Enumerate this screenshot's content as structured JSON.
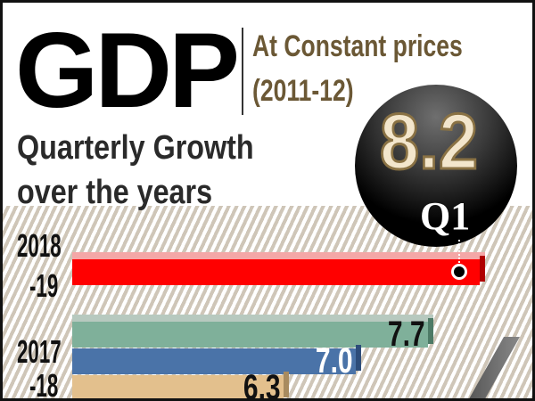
{
  "header": {
    "title": "GDP",
    "subtitle_line1": "At Constant prices",
    "subtitle_line2": "(2011-12)",
    "heading_line1": "Quarterly Growth",
    "heading_line2": "over the years"
  },
  "highlight": {
    "value": "8.2",
    "quarter": "Q1"
  },
  "chart_data": {
    "type": "bar",
    "title": "GDP Quarterly Growth over the years",
    "xlim": [
      4.25,
      8.2
    ],
    "groups": [
      {
        "year_line1": "2018",
        "year_line2": "-19",
        "bars": [
          {
            "quarter": "Q1",
            "value": 8.2,
            "label": "",
            "color": "#ff0000",
            "top": "#f4a7a7",
            "side": "#b00000"
          }
        ]
      },
      {
        "year_line1": "2017",
        "year_line2": "-18",
        "bars": [
          {
            "value": 7.7,
            "label": "7.7",
            "color": "#7fb09a",
            "top": "#b7c9bf",
            "side": "#4d7a66",
            "label_color": "#111"
          },
          {
            "value": 7.0,
            "label": "7.0",
            "color": "#4a73a8",
            "top": "#6d8fbf",
            "side": "#2d4d7a",
            "label_color": "#fff"
          },
          {
            "value": 6.3,
            "label": "6.3",
            "color": "#e3c08d",
            "top": "#ecd3ae",
            "side": "#a88b5f",
            "label_color": "#111"
          }
        ]
      }
    ]
  }
}
